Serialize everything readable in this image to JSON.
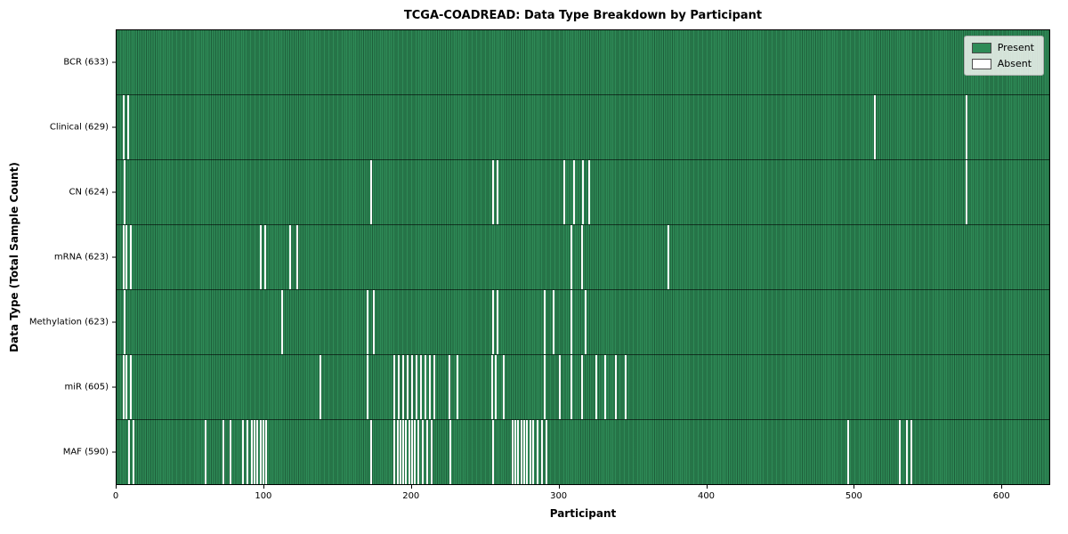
{
  "colors": {
    "present": "#2e8b57",
    "absent": "#fbfbfb",
    "bar_edge": "#123c26",
    "legend_border": "#b0b0b0"
  },
  "chart_data": {
    "type": "heatmap",
    "title": "TCGA-COADREAD: Data Type Breakdown by Participant",
    "xlabel": "Participant",
    "ylabel": "Data Type (Total Sample Count)",
    "legend": [
      "Present",
      "Absent"
    ],
    "legend_position": "upper right",
    "x_range": [
      0,
      633
    ],
    "x_ticks": [
      0,
      100,
      200,
      300,
      400,
      500,
      600
    ],
    "total_participants": 633,
    "rows": [
      {
        "label": "BCR (633)",
        "data_type": "BCR",
        "count": 633,
        "absent_participants": []
      },
      {
        "label": "Clinical (629)",
        "data_type": "Clinical",
        "count": 629,
        "absent_participants": [
          4,
          7,
          514,
          576
        ]
      },
      {
        "label": "CN (624)",
        "data_type": "CN",
        "count": 624,
        "absent_participants": [
          5,
          172,
          255,
          258,
          303,
          310,
          316,
          320,
          576
        ]
      },
      {
        "label": "mRNA (623)",
        "data_type": "mRNA",
        "count": 623,
        "absent_participants": [
          4,
          6,
          9,
          97,
          100,
          117,
          122,
          308,
          315,
          374
        ]
      },
      {
        "label": "Methylation (623)",
        "data_type": "Methylation",
        "count": 623,
        "absent_participants": [
          5,
          112,
          170,
          174,
          255,
          258,
          290,
          296,
          308,
          318
        ]
      },
      {
        "label": "miR (605)",
        "data_type": "miR",
        "count": 605,
        "absent_participants": [
          4,
          6,
          9,
          138,
          170,
          188,
          191,
          194,
          197,
          200,
          203,
          206,
          209,
          212,
          215,
          225,
          231,
          254,
          257,
          262,
          290,
          300,
          308,
          315,
          325,
          331,
          338,
          345
        ]
      },
      {
        "label": "MAF (590)",
        "data_type": "MAF",
        "count": 590,
        "absent_participants": [
          8,
          11,
          60,
          72,
          77,
          85,
          88,
          91,
          93,
          95,
          97,
          99,
          101,
          172,
          188,
          190,
          192,
          194,
          196,
          198,
          200,
          202,
          204,
          207,
          210,
          213,
          226,
          255,
          268,
          270,
          272,
          274,
          276,
          278,
          280,
          282,
          285,
          288,
          291,
          496,
          531,
          536,
          539
        ]
      }
    ]
  }
}
